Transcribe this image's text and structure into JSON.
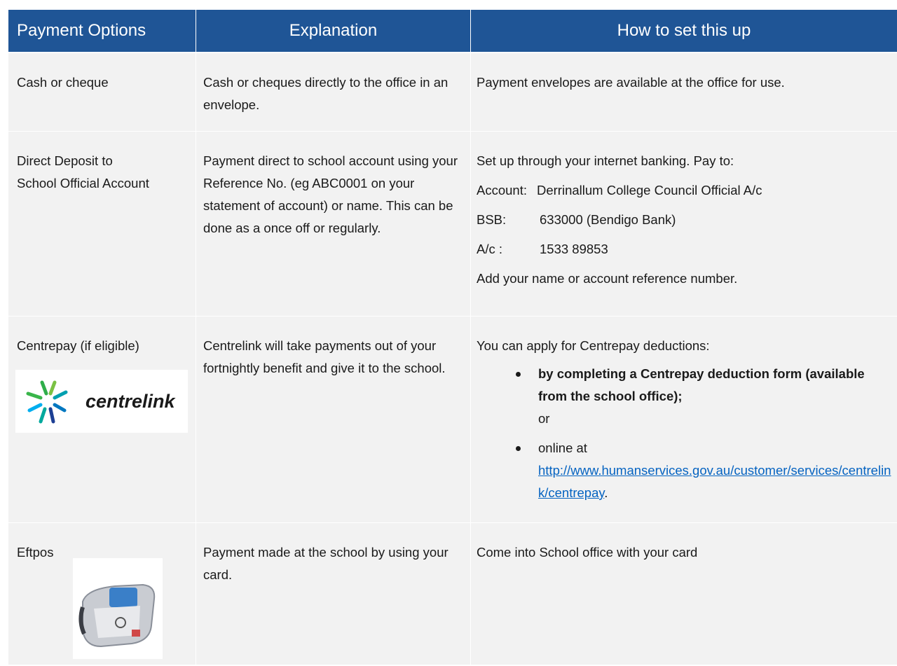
{
  "table": {
    "headers": [
      "Payment Options",
      "Explanation",
      "How to set this up"
    ],
    "rows": [
      {
        "option": "Cash or cheque",
        "explanation": "Cash or cheques directly to the office in an envelope.",
        "setup": "Payment envelopes are available at the office for use."
      },
      {
        "option": "Direct Deposit to School Official Account",
        "explanation": "Payment direct to school account using your Reference No. (eg ABC0001 on your statement of account) or name. This can be done as a once off or regularly.",
        "setup": "Set up through your internet banking.  Pay to:",
        "details": [
          {
            "label": "Account:",
            "value": "Derrinallum College Council Official A/c"
          },
          {
            "label": "BSB:",
            "value": "633000 (Bendigo Bank)"
          },
          {
            "label": "A/c :",
            "value": "1533 89853"
          }
        ],
        "note": "Add your name or account reference number."
      },
      {
        "option": "Centrepay (if eligible)",
        "logo_text": "centrelink",
        "explanation": "Centrelink will take payments out of your fortnightly benefit and give it to the school.",
        "setup": "You can apply for Centrepay deductions:",
        "bullets": [
          {
            "text": "by completing a Centrepay deduction form (available from the school office);",
            "after": "or"
          },
          {
            "text": "online at",
            "link": "http://www.humanservices.gov.au/customer/services/centrelink/centrepay",
            "after": "."
          }
        ]
      },
      {
        "option": "Eftpos",
        "explanation": "Payment made at the school by using your card.",
        "setup": "Come into School office with your card"
      }
    ]
  }
}
